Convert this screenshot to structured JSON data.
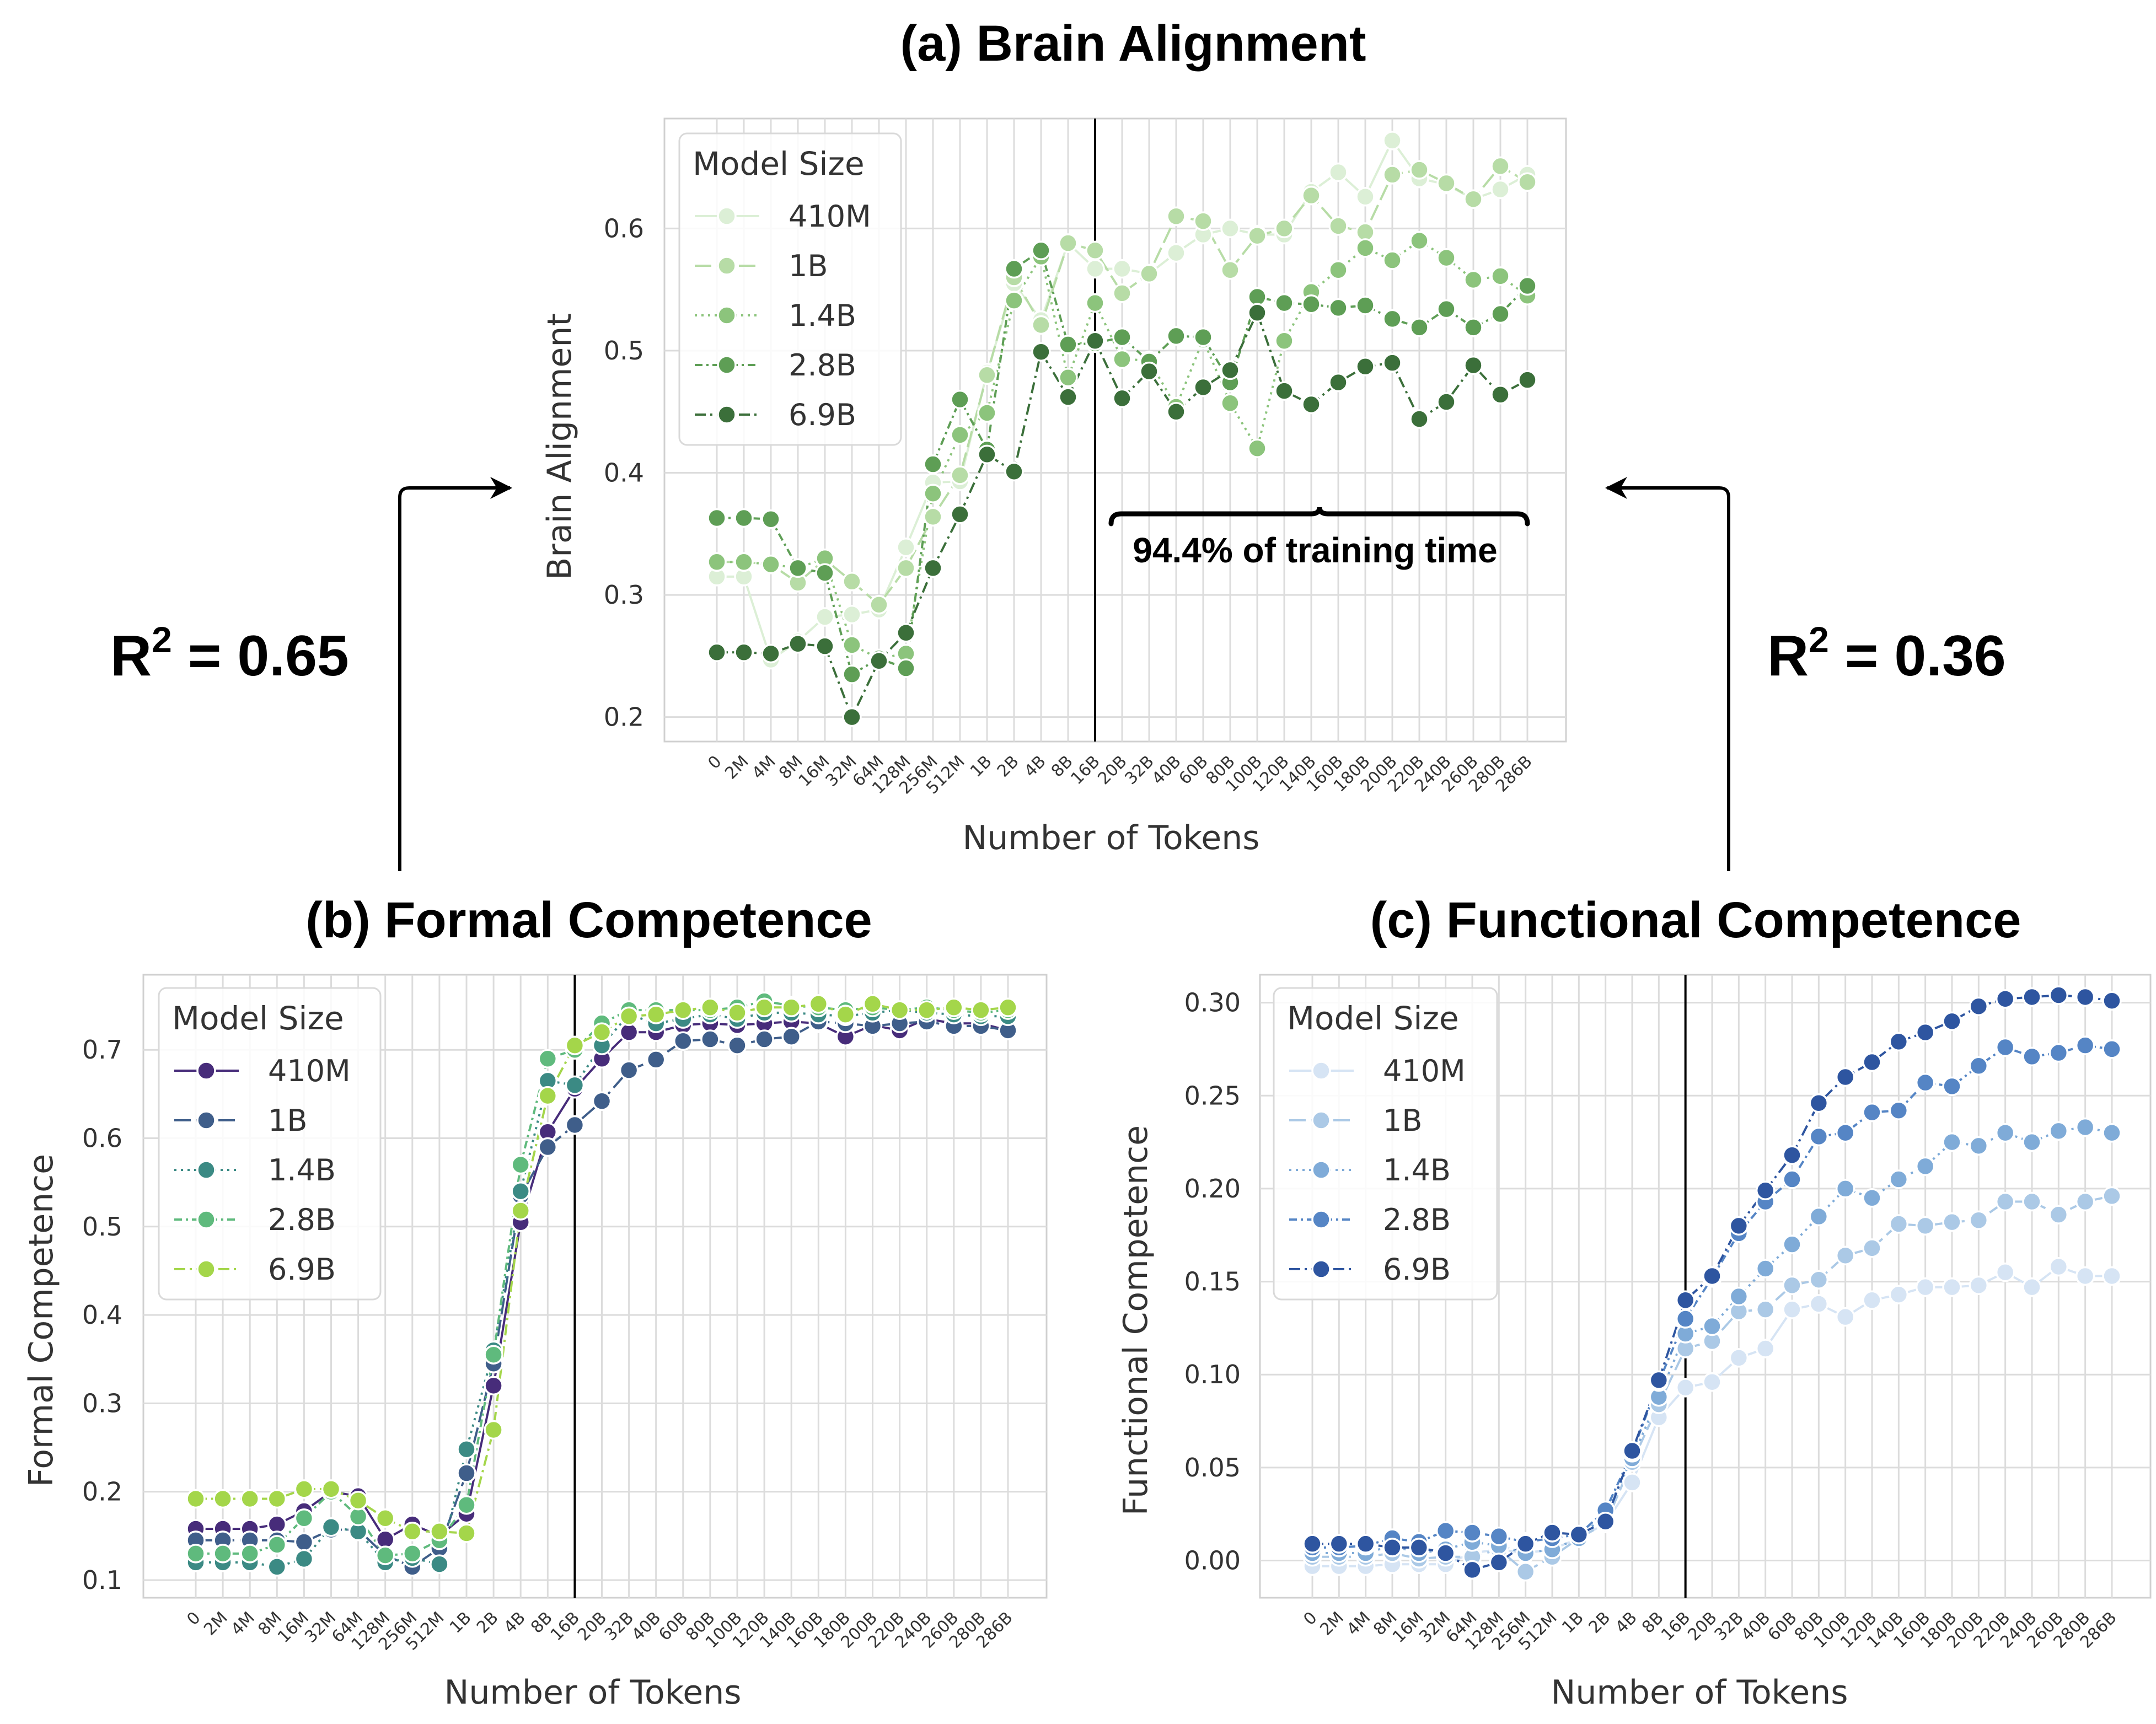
{
  "figure": {
    "r2_left": {
      "prefix": "R",
      "sup": "2",
      "suffix": " = 0.65"
    },
    "r2_right": {
      "prefix": "R",
      "sup": "2",
      "suffix": " = 0.36"
    },
    "annotation": "94.4% of training time"
  },
  "chart_data": [
    {
      "id": "brain",
      "type": "line",
      "title": "(a) Brain Alignment",
      "xlabel": "Number of Tokens",
      "ylabel": "Brain Alignment",
      "ylim": [
        0.18,
        0.69
      ],
      "yticks": [
        0.2,
        0.3,
        0.4,
        0.5,
        0.6
      ],
      "ytick_labels": [
        "0.2",
        "0.3",
        "0.4",
        "0.5",
        "0.6"
      ],
      "vline_category": "16B",
      "legend_title": "Model Size",
      "legend_position": "top-left",
      "categories": [
        "0",
        "2M",
        "4M",
        "8M",
        "16M",
        "32M",
        "64M",
        "128M",
        "256M",
        "512M",
        "1B",
        "2B",
        "4B",
        "8B",
        "16B",
        "20B",
        "32B",
        "40B",
        "60B",
        "80B",
        "100B",
        "120B",
        "140B",
        "160B",
        "180B",
        "200B",
        "220B",
        "240B",
        "260B",
        "280B",
        "286B"
      ],
      "series": [
        {
          "name": "410M",
          "color": "#dcefd6",
          "dash": "",
          "values": [
            0.315,
            0.315,
            0.247,
            0.262,
            0.282,
            0.284,
            0.288,
            0.339,
            0.392,
            0.393,
            0.482,
            0.555,
            0.525,
            0.588,
            0.567,
            0.567,
            0.563,
            0.58,
            0.595,
            0.6,
            0.595,
            0.595,
            0.63,
            0.646,
            0.626,
            0.672,
            0.641,
            0.636,
            0.624,
            0.632,
            0.644
          ]
        },
        {
          "name": "1B",
          "color": "#b7dca6",
          "dash": "30,10",
          "values": [
            0.327,
            0.327,
            0.325,
            0.31,
            0.329,
            0.311,
            0.292,
            0.322,
            0.364,
            0.398,
            0.48,
            0.56,
            0.521,
            0.588,
            0.582,
            0.547,
            0.563,
            0.61,
            0.606,
            0.566,
            0.594,
            0.6,
            0.627,
            0.602,
            0.597,
            0.644,
            0.648,
            0.637,
            0.624,
            0.651,
            0.638
          ]
        },
        {
          "name": "1.4B",
          "color": "#8cc47c",
          "dash": "4,8",
          "values": [
            0.327,
            0.327,
            0.325,
            0.322,
            0.33,
            0.259,
            0.248,
            0.252,
            0.383,
            0.431,
            0.449,
            0.541,
            0.577,
            0.478,
            0.539,
            0.493,
            0.492,
            0.454,
            0.509,
            0.457,
            0.42,
            0.508,
            0.548,
            0.566,
            0.584,
            0.574,
            0.59,
            0.576,
            0.558,
            0.561,
            0.545
          ]
        },
        {
          "name": "2.8B",
          "color": "#5e9e55",
          "dash": "14,7,4,7",
          "values": [
            0.363,
            0.363,
            0.362,
            0.322,
            0.318,
            0.235,
            0.248,
            0.24,
            0.407,
            0.46,
            0.419,
            0.567,
            0.582,
            0.505,
            0.506,
            0.511,
            0.491,
            0.512,
            0.511,
            0.474,
            0.544,
            0.539,
            0.538,
            0.535,
            0.537,
            0.526,
            0.519,
            0.534,
            0.519,
            0.53,
            0.553
          ]
        },
        {
          "name": "6.9B",
          "color": "#3b6f3a",
          "dash": "20,8,4,8",
          "values": [
            0.253,
            0.253,
            0.252,
            0.26,
            0.258,
            0.2,
            0.246,
            0.269,
            0.322,
            0.366,
            0.415,
            0.401,
            0.499,
            0.462,
            0.508,
            0.461,
            0.483,
            0.45,
            0.47,
            0.484,
            0.531,
            0.467,
            0.456,
            0.474,
            0.487,
            0.49,
            0.444,
            0.458,
            0.488,
            0.464,
            0.476
          ]
        }
      ]
    },
    {
      "id": "formal",
      "type": "line",
      "title": "(b) Formal Competence",
      "xlabel": "Number of Tokens",
      "ylabel": "Formal Competence",
      "ylim": [
        0.08,
        0.785
      ],
      "yticks": [
        0.1,
        0.2,
        0.3,
        0.4,
        0.5,
        0.6,
        0.7
      ],
      "ytick_labels": [
        "0.1",
        "0.2",
        "0.3",
        "0.4",
        "0.5",
        "0.6",
        "0.7"
      ],
      "vline_category": "16B",
      "legend_title": "Model Size",
      "legend_position": "top-left",
      "categories": [
        "0",
        "2M",
        "4M",
        "8M",
        "16M",
        "32M",
        "64M",
        "128M",
        "256M",
        "512M",
        "1B",
        "2B",
        "4B",
        "8B",
        "16B",
        "20B",
        "32B",
        "40B",
        "60B",
        "80B",
        "100B",
        "120B",
        "140B",
        "160B",
        "180B",
        "200B",
        "220B",
        "240B",
        "260B",
        "280B",
        "286B"
      ],
      "series": [
        {
          "name": "410M",
          "color": "#472c7a",
          "dash": "",
          "values": [
            0.158,
            0.158,
            0.158,
            0.163,
            0.178,
            0.2,
            0.195,
            0.146,
            0.163,
            0.15,
            0.175,
            0.32,
            0.505,
            0.607,
            0.656,
            0.69,
            0.72,
            0.72,
            0.728,
            0.73,
            0.728,
            0.73,
            0.732,
            0.73,
            0.715,
            0.728,
            0.722,
            0.735,
            0.73,
            0.73,
            0.722
          ]
        },
        {
          "name": "1B",
          "color": "#3f5e8a",
          "dash": "30,10",
          "values": [
            0.145,
            0.145,
            0.145,
            0.145,
            0.143,
            0.157,
            0.157,
            0.128,
            0.115,
            0.136,
            0.221,
            0.345,
            0.535,
            0.59,
            0.615,
            0.642,
            0.677,
            0.689,
            0.71,
            0.712,
            0.705,
            0.712,
            0.715,
            0.732,
            0.73,
            0.727,
            0.73,
            0.732,
            0.727,
            0.727,
            0.722
          ]
        },
        {
          "name": "1.4B",
          "color": "#3b8a84",
          "dash": "4,8",
          "values": [
            0.12,
            0.12,
            0.12,
            0.115,
            0.124,
            0.16,
            0.155,
            0.12,
            0.125,
            0.118,
            0.248,
            0.36,
            0.54,
            0.665,
            0.66,
            0.705,
            0.74,
            0.73,
            0.735,
            0.74,
            0.735,
            0.742,
            0.742,
            0.74,
            0.738,
            0.742,
            0.745,
            0.742,
            0.74,
            0.738,
            0.738
          ]
        },
        {
          "name": "2.8B",
          "color": "#5fba7d",
          "dash": "14,7,4,7",
          "values": [
            0.13,
            0.13,
            0.13,
            0.14,
            0.17,
            0.2,
            0.172,
            0.128,
            0.13,
            0.145,
            0.185,
            0.355,
            0.57,
            0.69,
            0.7,
            0.73,
            0.745,
            0.745,
            0.745,
            0.745,
            0.748,
            0.755,
            0.75,
            0.748,
            0.745,
            0.748,
            0.745,
            0.748,
            0.745,
            0.742,
            0.745
          ]
        },
        {
          "name": "6.9B",
          "color": "#a4d64a",
          "dash": "20,8,4,8",
          "values": [
            0.192,
            0.192,
            0.192,
            0.192,
            0.203,
            0.203,
            0.19,
            0.17,
            0.155,
            0.155,
            0.153,
            0.27,
            0.518,
            0.648,
            0.705,
            0.72,
            0.738,
            0.74,
            0.745,
            0.748,
            0.742,
            0.748,
            0.748,
            0.752,
            0.74,
            0.752,
            0.745,
            0.745,
            0.748,
            0.745,
            0.748
          ]
        }
      ]
    },
    {
      "id": "functional",
      "type": "line",
      "title": "(c) Functional Competence",
      "xlabel": "Number of Tokens",
      "ylabel": "Functional Competence",
      "ylim": [
        -0.02,
        0.315
      ],
      "yticks": [
        0.0,
        0.05,
        0.1,
        0.15,
        0.2,
        0.25,
        0.3
      ],
      "ytick_labels": [
        "0.00",
        "0.05",
        "0.10",
        "0.15",
        "0.20",
        "0.25",
        "0.30"
      ],
      "vline_category": "16B",
      "legend_title": "Model Size",
      "legend_position": "top-left",
      "categories": [
        "0",
        "2M",
        "4M",
        "8M",
        "16M",
        "32M",
        "64M",
        "128M",
        "256M",
        "512M",
        "1B",
        "2B",
        "4B",
        "8B",
        "16B",
        "20B",
        "32B",
        "40B",
        "60B",
        "80B",
        "100B",
        "120B",
        "140B",
        "160B",
        "180B",
        "200B",
        "220B",
        "240B",
        "260B",
        "280B",
        "286B"
      ],
      "series": [
        {
          "name": "410M",
          "color": "#d6e4f4",
          "dash": "",
          "values": [
            -0.003,
            -0.003,
            -0.003,
            -0.002,
            -0.002,
            -0.002,
            0.004,
            0.006,
            0.004,
            0.006,
            0.012,
            0.02,
            0.042,
            0.077,
            0.093,
            0.096,
            0.109,
            0.114,
            0.135,
            0.138,
            0.131,
            0.14,
            0.143,
            0.147,
            0.147,
            0.148,
            0.155,
            0.147,
            0.158,
            0.153,
            0.153
          ]
        },
        {
          "name": "1B",
          "color": "#abc9e6",
          "dash": "30,10",
          "values": [
            0.002,
            0.002,
            0.002,
            0.004,
            0.001,
            0.002,
            0.002,
            0.006,
            -0.006,
            0.002,
            0.012,
            0.02,
            0.053,
            0.084,
            0.114,
            0.118,
            0.134,
            0.135,
            0.148,
            0.151,
            0.164,
            0.168,
            0.181,
            0.18,
            0.182,
            0.183,
            0.193,
            0.193,
            0.186,
            0.193,
            0.196
          ]
        },
        {
          "name": "1.4B",
          "color": "#7fabd8",
          "dash": "4,8",
          "values": [
            0.004,
            0.004,
            0.004,
            0.008,
            0.004,
            0.006,
            0.01,
            0.008,
            0.004,
            0.006,
            0.012,
            0.025,
            0.055,
            0.088,
            0.122,
            0.126,
            0.142,
            0.157,
            0.17,
            0.185,
            0.2,
            0.195,
            0.205,
            0.212,
            0.225,
            0.223,
            0.23,
            0.225,
            0.231,
            0.233,
            0.23
          ]
        },
        {
          "name": "2.8B",
          "color": "#5585c5",
          "dash": "14,7,4,7",
          "values": [
            0.007,
            0.007,
            0.008,
            0.012,
            0.01,
            0.016,
            0.015,
            0.013,
            0.01,
            0.012,
            0.014,
            0.027,
            0.058,
            0.096,
            0.13,
            0.152,
            0.176,
            0.193,
            0.205,
            0.228,
            0.23,
            0.241,
            0.242,
            0.257,
            0.255,
            0.266,
            0.276,
            0.271,
            0.273,
            0.277,
            0.275
          ]
        },
        {
          "name": "6.9B",
          "color": "#2e55a0",
          "dash": "20,8,4,8",
          "values": [
            0.009,
            0.009,
            0.009,
            0.007,
            0.007,
            0.004,
            -0.005,
            -0.001,
            0.009,
            0.015,
            0.014,
            0.021,
            0.059,
            0.097,
            0.14,
            0.153,
            0.18,
            0.199,
            0.218,
            0.246,
            0.26,
            0.268,
            0.279,
            0.284,
            0.29,
            0.298,
            0.302,
            0.303,
            0.304,
            0.303,
            0.301
          ]
        }
      ]
    }
  ]
}
